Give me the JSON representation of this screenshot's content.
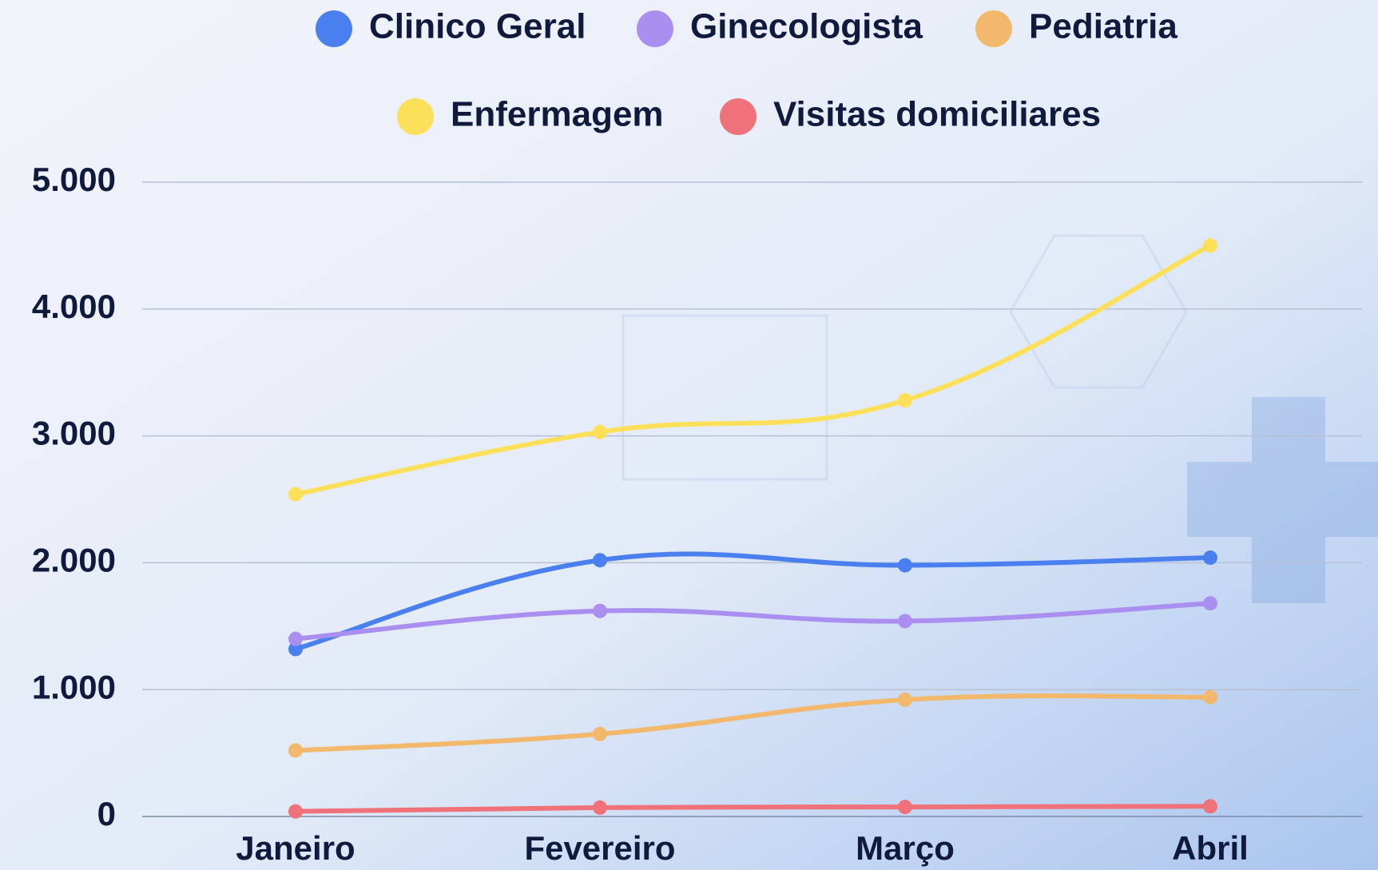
{
  "chart_data": {
    "type": "line",
    "categories": [
      "Janeiro",
      "Fevereiro",
      "Março",
      "Abril"
    ],
    "series": [
      {
        "name": "Clinico Geral",
        "color": "#4a7ff0",
        "values": [
          1320,
          2020,
          1980,
          2040
        ]
      },
      {
        "name": "Ginecologista",
        "color": "#aa8ef0",
        "values": [
          1400,
          1620,
          1540,
          1680
        ]
      },
      {
        "name": "Pediatria",
        "color": "#f2b86c",
        "values": [
          520,
          650,
          920,
          940
        ]
      },
      {
        "name": "Enfermagem",
        "color": "#fde05a",
        "values": [
          2540,
          3030,
          3280,
          4500
        ]
      },
      {
        "name": "Visitas domiciliares",
        "color": "#ef727a",
        "values": [
          40,
          70,
          75,
          80
        ]
      }
    ],
    "ylim": [
      0,
      5000
    ],
    "yticks": [
      0,
      {
        "value": 1000,
        "label": "1.000"
      },
      {
        "value": 2000,
        "label": "2.000"
      },
      {
        "value": 3000,
        "label": "3.000"
      },
      {
        "value": 4000,
        "label": "4.000"
      },
      {
        "value": 5000,
        "label": "5.000"
      }
    ],
    "grid": true
  }
}
